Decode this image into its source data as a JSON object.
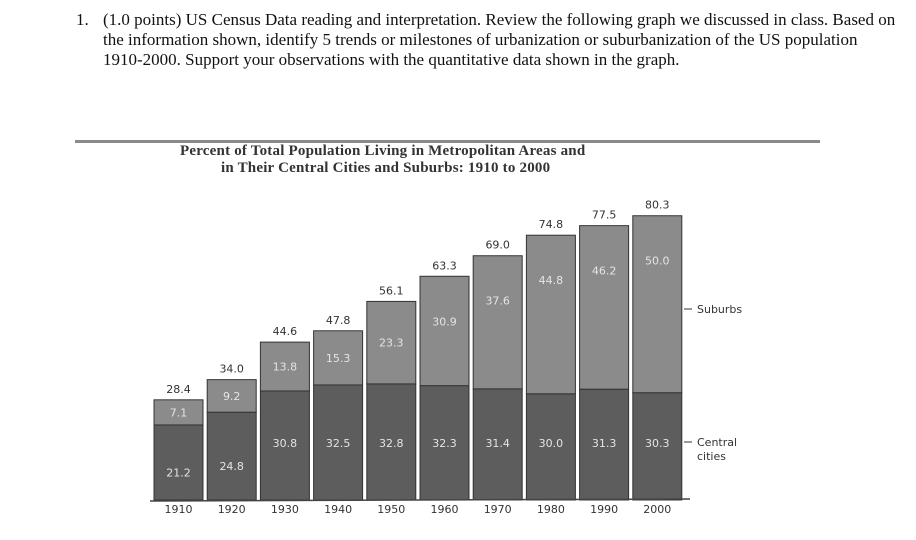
{
  "question": {
    "number": "1.",
    "text": "(1.0 points) US Census Data reading and interpretation.  Review the following graph we discussed in class.  Based on the information shown, identify 5 trends or milestones of urbanization or suburbanization of the US population 1910-2000.  Support your observations with the quantitative data shown in the graph."
  },
  "chart_data": {
    "type": "bar",
    "stacked": true,
    "title_line1": "Percent of Total Population Living in Metropolitan Areas and",
    "title_line2": "in Their Central Cities and Suburbs:  1910 to 2000",
    "categories": [
      "1910",
      "1920",
      "1930",
      "1940",
      "1950",
      "1960",
      "1970",
      "1980",
      "1990",
      "2000"
    ],
    "series": [
      {
        "name": "Central cities",
        "values": [
          21.2,
          24.8,
          30.8,
          32.5,
          32.8,
          32.3,
          31.4,
          30.0,
          31.3,
          30.3
        ],
        "color": "#5d5d5d"
      },
      {
        "name": "Suburbs",
        "values": [
          7.1,
          9.2,
          13.8,
          15.3,
          23.3,
          30.9,
          37.6,
          44.8,
          46.2,
          50.0
        ],
        "color": "#8b8b8b"
      }
    ],
    "totals": [
      28.4,
      34.0,
      44.6,
      47.8,
      56.1,
      63.3,
      69.0,
      74.8,
      77.5,
      80.3
    ],
    "total_labels": [
      "28.4",
      "34.0",
      "44.6",
      "47.8",
      "56.1",
      "63.3",
      "69.0",
      "74.8",
      "77.5",
      "80.3"
    ],
    "central_labels": [
      "21.2",
      "24.8",
      "30.8",
      "32.5",
      "32.8",
      "32.3",
      "31.4",
      "30.0",
      "31.3",
      "30.3"
    ],
    "suburb_labels": [
      "7.1",
      "9.2",
      "13.8",
      "15.3",
      "23.3",
      "30.9",
      "37.6",
      "44.8",
      "46.2",
      "50.0"
    ],
    "legend": {
      "suburbs": "Suburbs",
      "central_line1": "Central",
      "central_line2": "cities"
    },
    "legend_placement": "right",
    "ylim": [
      0,
      80.3
    ],
    "grid": false
  }
}
